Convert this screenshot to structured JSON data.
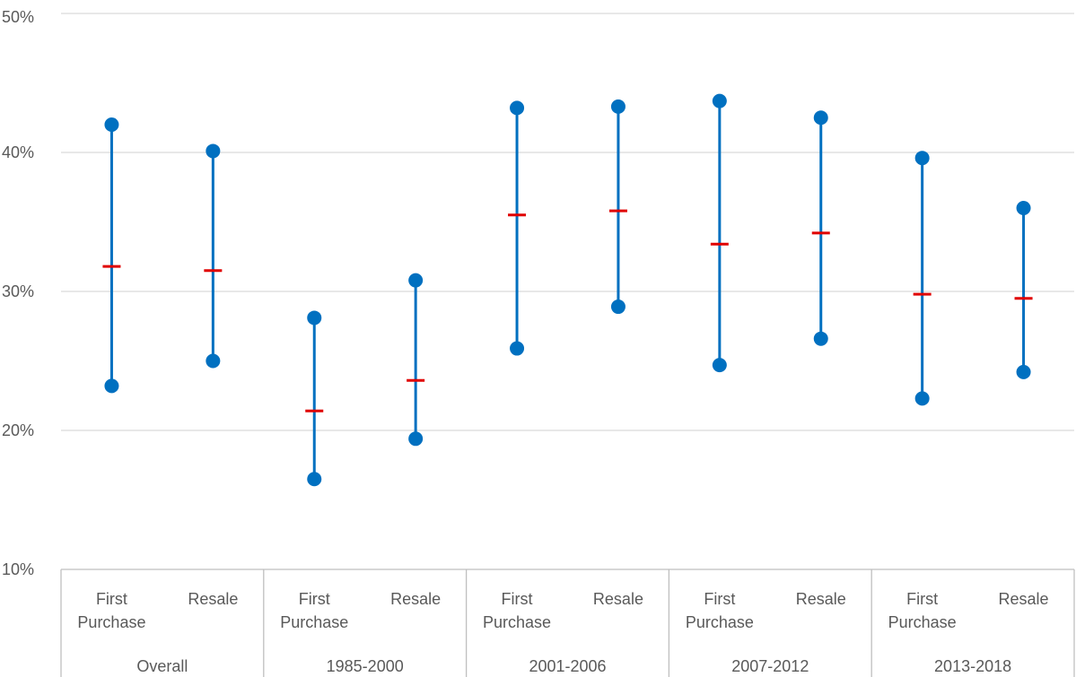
{
  "chart_data": {
    "type": "high-low-mean",
    "title": "",
    "xlabel": "",
    "ylabel": "",
    "ylim": [
      0.1,
      0.5
    ],
    "y_ticks": [
      {
        "value": 0.1,
        "label": "10%"
      },
      {
        "value": 0.2,
        "label": "20%"
      },
      {
        "value": 0.3,
        "label": "30%"
      },
      {
        "value": 0.4,
        "label": "40%"
      },
      {
        "value": 0.5,
        "label": "50%"
      }
    ],
    "grid": true,
    "legend": "none",
    "colors": {
      "range": "#0070C0",
      "mean": "#E00000",
      "grid": "#D9D9D9",
      "axis": "#BFBFBF",
      "text": "#595959"
    },
    "groups": [
      {
        "label": "Overall",
        "categories": [
          {
            "label_lines": [
              "First",
              "Purchase"
            ],
            "high": 0.42,
            "mean": 0.318,
            "low": 0.232
          },
          {
            "label_lines": [
              "Resale"
            ],
            "high": 0.401,
            "mean": 0.315,
            "low": 0.25
          }
        ]
      },
      {
        "label": "1985-2000",
        "categories": [
          {
            "label_lines": [
              "First",
              "Purchase"
            ],
            "high": 0.281,
            "mean": 0.214,
            "low": 0.165
          },
          {
            "label_lines": [
              "Resale"
            ],
            "high": 0.308,
            "mean": 0.236,
            "low": 0.194
          }
        ]
      },
      {
        "label": "2001-2006",
        "categories": [
          {
            "label_lines": [
              "First",
              "Purchase"
            ],
            "high": 0.432,
            "mean": 0.355,
            "low": 0.259
          },
          {
            "label_lines": [
              "Resale"
            ],
            "high": 0.433,
            "mean": 0.358,
            "low": 0.289
          }
        ]
      },
      {
        "label": "2007-2012",
        "categories": [
          {
            "label_lines": [
              "First",
              "Purchase"
            ],
            "high": 0.437,
            "mean": 0.334,
            "low": 0.247
          },
          {
            "label_lines": [
              "Resale"
            ],
            "high": 0.425,
            "mean": 0.342,
            "low": 0.266
          }
        ]
      },
      {
        "label": "2013-2018",
        "categories": [
          {
            "label_lines": [
              "First",
              "Purchase"
            ],
            "high": 0.396,
            "mean": 0.298,
            "low": 0.223
          },
          {
            "label_lines": [
              "Resale"
            ],
            "high": 0.36,
            "mean": 0.295,
            "low": 0.242
          }
        ]
      }
    ]
  }
}
